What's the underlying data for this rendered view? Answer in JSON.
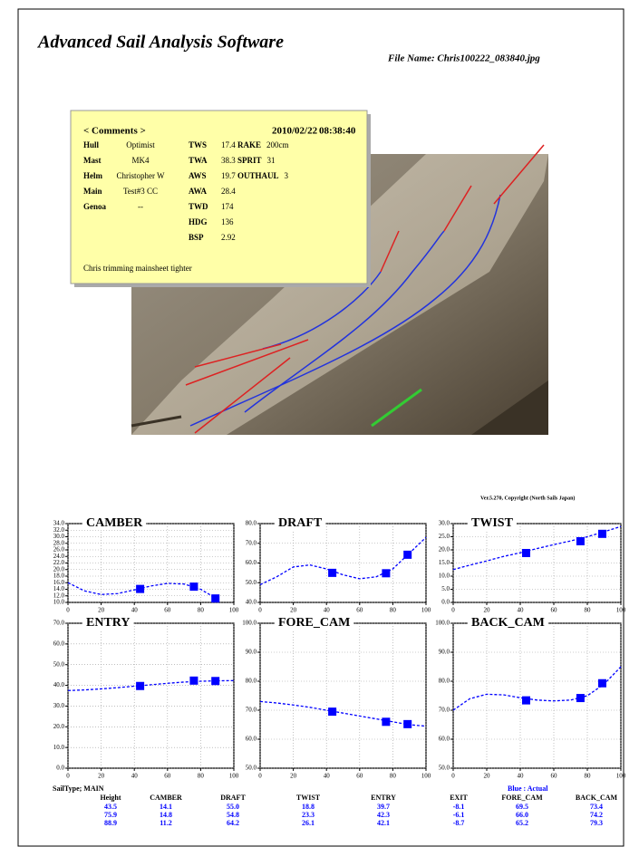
{
  "header": {
    "title": "Advanced Sail Analysis Software",
    "file_name": "File Name: Chris100222_083840.jpg"
  },
  "comments": {
    "heading": "< Comments >",
    "date": "2010/02/22",
    "time": "08:38:40",
    "left": [
      [
        "Hull",
        "Optimist"
      ],
      [
        "Mast",
        "MK4"
      ],
      [
        "Helm",
        "Christopher W"
      ],
      [
        "Main",
        "Test#3 CC"
      ],
      [
        "Genoa",
        "--"
      ]
    ],
    "wind": [
      [
        "TWS",
        "17.4"
      ],
      [
        "TWA",
        "38.3"
      ],
      [
        "AWS",
        "19.7"
      ],
      [
        "AWA",
        "28.4"
      ],
      [
        "TWD",
        "174"
      ],
      [
        "HDG",
        "136"
      ],
      [
        "BSP",
        "2.92"
      ]
    ],
    "rig": [
      [
        "RAKE",
        "200cm"
      ],
      [
        "SPRIT",
        "31"
      ],
      [
        "OUTHAUL",
        "3"
      ]
    ],
    "note": "Chris trimming mainsheet tighter"
  },
  "version": "Ver.5.270, Copyright (North Sails Japan)",
  "chart_data": [
    {
      "type": "line",
      "title": "CAMBER",
      "color": "#0000ff",
      "grid": true,
      "x": [
        0,
        10,
        20,
        30,
        40,
        50,
        60,
        70,
        80,
        90
      ],
      "values": [
        16.0,
        13.5,
        12.4,
        12.7,
        13.8,
        15.0,
        15.8,
        15.6,
        14.0,
        11.0
      ],
      "points_x": [
        43.5,
        75.9,
        88.9
      ],
      "points": [
        14.1,
        14.8,
        11.2
      ],
      "xlim": [
        0,
        100
      ],
      "xticks": [
        0,
        20,
        40,
        60,
        80,
        100
      ],
      "ylim": [
        10,
        34
      ],
      "yticks": [
        {
          "value": 10,
          "label": "10.0"
        },
        {
          "value": 12,
          "label": "12.0"
        },
        {
          "value": 14,
          "label": "14.0"
        },
        {
          "value": 16,
          "label": "16.0"
        },
        {
          "value": 18,
          "label": "18.0"
        },
        {
          "value": 20,
          "label": "20.0"
        },
        {
          "value": 22,
          "label": "22.0"
        },
        {
          "value": 24,
          "label": "24.0"
        },
        {
          "value": 26,
          "label": "26.0"
        },
        {
          "value": 28,
          "label": "28.0"
        },
        {
          "value": 30,
          "label": "30.0"
        },
        {
          "value": 32,
          "label": "32.0"
        },
        {
          "value": 34,
          "label": "34.0"
        }
      ]
    },
    {
      "type": "line",
      "title": "DRAFT",
      "color": "#0000ff",
      "grid": true,
      "x": [
        0,
        10,
        20,
        30,
        40,
        50,
        60,
        70,
        80,
        90,
        100
      ],
      "values": [
        49,
        53,
        58,
        59,
        57,
        54,
        52,
        53,
        57,
        65,
        73
      ],
      "points_x": [
        43.5,
        75.9,
        88.9
      ],
      "points": [
        55.0,
        54.8,
        64.2
      ],
      "xlim": [
        0,
        100
      ],
      "xticks": [
        0,
        20,
        40,
        60,
        80,
        100
      ],
      "ylim": [
        40,
        80
      ],
      "yticks": [
        {
          "value": 40,
          "label": "40.0"
        },
        {
          "value": 50,
          "label": "50.0"
        },
        {
          "value": 60,
          "label": "60.0"
        },
        {
          "value": 70,
          "label": "70.0"
        },
        {
          "value": 80,
          "label": "80.0"
        }
      ]
    },
    {
      "type": "line",
      "title": "TWIST",
      "color": "#0000ff",
      "grid": true,
      "x": [
        0,
        10,
        20,
        30,
        40,
        50,
        60,
        70,
        80,
        90,
        100
      ],
      "values": [
        12.5,
        14.2,
        15.8,
        17.5,
        18.9,
        20.5,
        22,
        23.4,
        25,
        26.9,
        28.9
      ],
      "points_x": [
        43.5,
        75.9,
        88.9
      ],
      "points": [
        18.8,
        23.3,
        26.1
      ],
      "xlim": [
        0,
        100
      ],
      "xticks": [
        0,
        20,
        40,
        60,
        80,
        100
      ],
      "ylim": [
        0,
        30
      ],
      "yticks": [
        {
          "value": 0,
          "label": "0.0"
        },
        {
          "value": 5,
          "label": "5.0"
        },
        {
          "value": 10,
          "label": "10.0"
        },
        {
          "value": 15,
          "label": "15.0"
        },
        {
          "value": 20,
          "label": "20.0"
        },
        {
          "value": 25,
          "label": "25.0"
        },
        {
          "value": 30,
          "label": "30.0"
        }
      ]
    },
    {
      "type": "line",
      "title": "ENTRY",
      "color": "#0000ff",
      "grid": true,
      "x": [
        0,
        10,
        20,
        30,
        40,
        50,
        60,
        70,
        80,
        90,
        100
      ],
      "values": [
        37.5,
        37.8,
        38.3,
        38.9,
        39.6,
        40.3,
        41,
        41.6,
        42,
        42.2,
        42.3
      ],
      "points_x": [
        43.5,
        75.9,
        88.9
      ],
      "points": [
        39.7,
        42.3,
        42.1
      ],
      "xlim": [
        0,
        100
      ],
      "xticks": [
        0,
        20,
        40,
        60,
        80,
        100
      ],
      "ylim": [
        0,
        70
      ],
      "yticks": [
        {
          "value": 0,
          "label": "0.0"
        },
        {
          "value": 10,
          "label": "10.0"
        },
        {
          "value": 20,
          "label": "20.0"
        },
        {
          "value": 30,
          "label": "30.0"
        },
        {
          "value": 40,
          "label": "40.0"
        },
        {
          "value": 50,
          "label": "50.0"
        },
        {
          "value": 60,
          "label": "60.0"
        },
        {
          "value": 70,
          "label": "70.0"
        }
      ]
    },
    {
      "type": "line",
      "title": "FORE_CAM",
      "color": "#0000ff",
      "grid": true,
      "x": [
        0,
        10,
        20,
        30,
        40,
        50,
        60,
        70,
        80,
        90,
        100
      ],
      "values": [
        73,
        72.5,
        71.8,
        71,
        70,
        69,
        68,
        67,
        66,
        65,
        64.5
      ],
      "points_x": [
        43.5,
        75.9,
        88.9
      ],
      "points": [
        69.5,
        66.0,
        65.2
      ],
      "xlim": [
        0,
        100
      ],
      "xticks": [
        0,
        20,
        40,
        60,
        80,
        100
      ],
      "ylim": [
        50,
        100
      ],
      "yticks": [
        {
          "value": 50,
          "label": "50.0"
        },
        {
          "value": 60,
          "label": "60.0"
        },
        {
          "value": 70,
          "label": "70.0"
        },
        {
          "value": 80,
          "label": "80.0"
        },
        {
          "value": 90,
          "label": "90.0"
        },
        {
          "value": 100,
          "label": "100.0"
        }
      ]
    },
    {
      "type": "line",
      "title": "BACK_CAM",
      "color": "#0000ff",
      "grid": true,
      "x": [
        0,
        10,
        20,
        30,
        40,
        50,
        60,
        70,
        80,
        90,
        100
      ],
      "values": [
        70,
        74,
        75.5,
        75.3,
        74.3,
        73.5,
        73.2,
        73.5,
        75,
        79,
        85
      ],
      "points_x": [
        43.5,
        75.9,
        88.9
      ],
      "points": [
        73.4,
        74.2,
        79.3
      ],
      "xlim": [
        0,
        100
      ],
      "xticks": [
        0,
        20,
        40,
        60,
        80,
        100
      ],
      "ylim": [
        50,
        100
      ],
      "yticks": [
        {
          "value": 50,
          "label": "50.0"
        },
        {
          "value": 60,
          "label": "60.0"
        },
        {
          "value": 70,
          "label": "70.0"
        },
        {
          "value": 80,
          "label": "80.0"
        },
        {
          "value": 90,
          "label": "90.0"
        },
        {
          "value": 100,
          "label": "100.0"
        }
      ]
    }
  ],
  "table": {
    "sail_type": "SailType; MAIN",
    "legend": "Blue : Actual",
    "columns": [
      "Height",
      "CAMBER",
      "DRAFT",
      "TWIST",
      "ENTRY",
      "EXIT",
      "FORE_CAM",
      "BACK_CAM"
    ],
    "rows": [
      [
        "43.5",
        "14.1",
        "55.0",
        "18.8",
        "39.7",
        "-8.1",
        "69.5",
        "73.4"
      ],
      [
        "75.9",
        "14.8",
        "54.8",
        "23.3",
        "42.3",
        "-6.1",
        "66.0",
        "74.2"
      ],
      [
        "88.9",
        "11.2",
        "64.2",
        "26.1",
        "42.1",
        "-8.7",
        "65.2",
        "79.3"
      ]
    ]
  }
}
